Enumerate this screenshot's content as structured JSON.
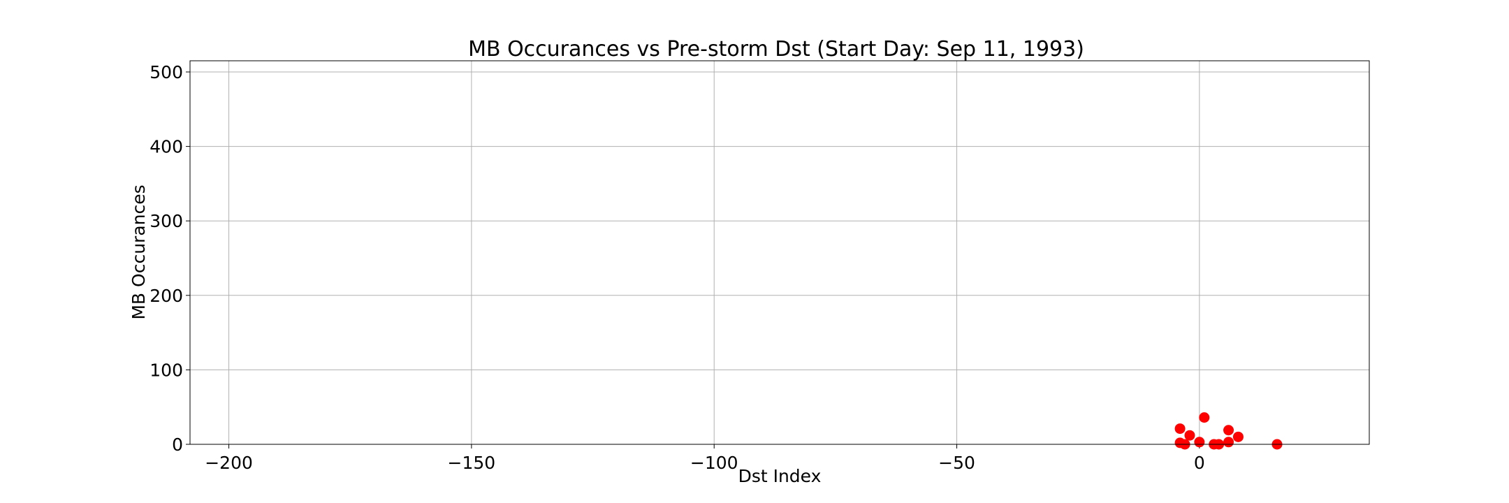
{
  "chart_data": {
    "type": "scatter",
    "title": "MB Occurances vs Pre-storm Dst (Start Day: Sep 11, 1993)",
    "xlabel": "Dst Index",
    "ylabel": "MB Occurances",
    "xlim": [
      -208,
      35
    ],
    "ylim": [
      0,
      515
    ],
    "xticks": [
      -200,
      -150,
      -100,
      -50,
      0
    ],
    "xtick_labels": [
      "−200",
      "−150",
      "−100",
      "−50",
      "0"
    ],
    "yticks": [
      0,
      100,
      200,
      300,
      400,
      500
    ],
    "ytick_labels": [
      "0",
      "100",
      "200",
      "300",
      "400",
      "500"
    ],
    "grid": true,
    "marker_color": "#ff0000",
    "points": [
      {
        "x": -4,
        "y": 21
      },
      {
        "x": -4,
        "y": 2
      },
      {
        "x": -3,
        "y": 0
      },
      {
        "x": -2,
        "y": 12
      },
      {
        "x": 0,
        "y": 3
      },
      {
        "x": 1,
        "y": 36
      },
      {
        "x": 3,
        "y": 0
      },
      {
        "x": 4,
        "y": 0
      },
      {
        "x": 6,
        "y": 19
      },
      {
        "x": 6,
        "y": 3
      },
      {
        "x": 8,
        "y": 10
      },
      {
        "x": 16,
        "y": 0
      }
    ]
  }
}
